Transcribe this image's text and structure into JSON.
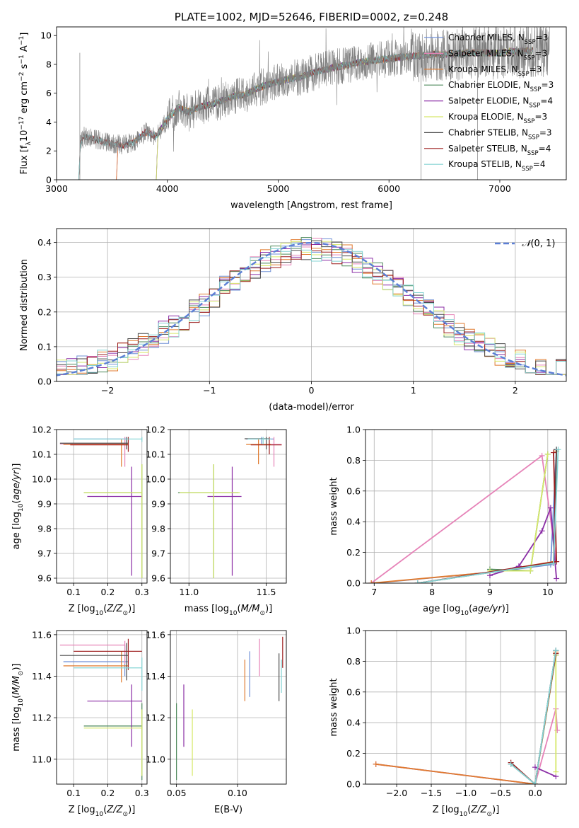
{
  "colors": {
    "Chabrier MILES": "#6f8fd6",
    "Salpeter MILES": "#e683b8",
    "Kroupa MILES": "#e07a2e",
    "Chabrier ELODIE": "#4f8a5c",
    "Salpeter ELODIE": "#8b2ea6",
    "Kroupa ELODIE": "#d6e86a",
    "Chabrier STELIB": "#4a4a4a",
    "Salpeter STELIB": "#9b1c1c",
    "Kroupa STELIB": "#85d4d4",
    "normal": "#5b7fd6",
    "grid": "#b0b0b0",
    "observed": "#808080"
  },
  "chart_data": [
    {
      "id": "spectrum",
      "type": "line",
      "title": "PLATE=1002, MJD=52646, FIBERID=0002, z=0.248",
      "xlabel": "wavelength [Angstrom, rest frame]",
      "ylabel": "Flux [f_λ 10^-17 erg cm^-2 s^-1 A^-1]",
      "xlim": [
        3000,
        7600
      ],
      "ylim": [
        0,
        10.6
      ],
      "xticks": [
        3000,
        4000,
        5000,
        6000,
        7000
      ],
      "yticks": [
        0,
        2,
        4,
        6,
        8,
        10
      ],
      "grid": false,
      "legend_position": "top-right",
      "continuum": {
        "x": [
          3200,
          3250,
          3300,
          3400,
          3500,
          3600,
          3700,
          3800,
          3900,
          4000,
          4100,
          4200,
          4300,
          4400,
          4500,
          4600,
          4700,
          4800,
          4900,
          5000,
          5100,
          5200,
          5300,
          5400,
          5500,
          5600,
          5700,
          5800,
          5900,
          6000,
          6100,
          6200,
          6300,
          6400,
          6500,
          6600,
          6700,
          6800,
          6900,
          7000,
          7100,
          7200,
          7300
        ],
        "y": [
          2.4,
          3.0,
          2.9,
          2.7,
          2.5,
          2.4,
          2.6,
          3.3,
          3.0,
          4.2,
          5.0,
          4.7,
          5.1,
          5.2,
          5.5,
          5.8,
          5.9,
          6.3,
          6.6,
          6.8,
          7.0,
          7.1,
          7.4,
          7.6,
          7.8,
          7.9,
          8.1,
          8.2,
          8.3,
          8.4,
          8.5,
          8.6,
          8.6,
          8.7,
          8.7,
          8.7,
          8.8,
          8.8,
          8.8,
          8.8,
          8.9,
          8.9,
          9.0
        ]
      },
      "series": [
        {
          "name": "Chabrier MILES, N_SSP=3",
          "nssp": "3"
        },
        {
          "name": "Salpeter MILES, N_SSP=3",
          "nssp": "3"
        },
        {
          "name": "Kroupa MILES, N_SSP=3",
          "nssp": "3"
        },
        {
          "name": "Chabrier ELODIE, N_SSP=3",
          "nssp": "3"
        },
        {
          "name": "Salpeter ELODIE, N_SSP=4",
          "nssp": "4"
        },
        {
          "name": "Kroupa ELODIE, N_SSP=3",
          "nssp": "3"
        },
        {
          "name": "Chabrier STELIB, N_SSP=3",
          "nssp": "3"
        },
        {
          "name": "Salpeter STELIB, N_SSP=4",
          "nssp": "4"
        },
        {
          "name": "Kroupa STELIB, N_SSP=4",
          "nssp": "4"
        }
      ],
      "model_start_wavelength": {
        "Chabrier MILES": 3540,
        "Salpeter MILES": 3540,
        "Kroupa MILES": 3540,
        "Chabrier ELODIE": 3900,
        "Salpeter ELODIE": 3900,
        "Kroupa ELODIE": 3900,
        "Chabrier STELIB": 3200,
        "Salpeter STELIB": 3200,
        "Kroupa STELIB": 3200
      }
    },
    {
      "id": "residuals",
      "type": "histogram",
      "xlabel": "(data-model)/error",
      "ylabel": "Normed distribution",
      "xlim": [
        -2.5,
        2.5
      ],
      "ylim": [
        0,
        0.44
      ],
      "xticks": [
        -2,
        -1,
        0,
        1,
        2
      ],
      "yticks": [
        0.0,
        0.1,
        0.2,
        0.3,
        0.4
      ],
      "grid": true,
      "bin_width": 0.1,
      "legend_position": "top-right",
      "reference_curve": {
        "name": "N(0,1)",
        "style": "dashed"
      }
    },
    {
      "id": "age_vs_Z",
      "type": "errorbar",
      "xlabel": "Z [log10(Z/Z_sun)]",
      "ylabel": "age [log10(age/yr)]",
      "xlim": [
        0.05,
        0.315
      ],
      "ylim": [
        9.58,
        10.2
      ],
      "xticks": [
        0.1,
        0.2,
        0.3
      ],
      "yticks": [
        9.6,
        9.7,
        9.8,
        9.9,
        10.0,
        10.1,
        10.2
      ],
      "grid": true,
      "points": [
        {
          "model": "Chabrier MILES",
          "x": 0.25,
          "xerr": [
            0.1,
            0.26
          ],
          "y": 10.162,
          "yerr": [
            10.14,
            10.17
          ]
        },
        {
          "model": "Salpeter MILES",
          "x": 0.25,
          "xerr": [
            0.06,
            0.25
          ],
          "y": 10.142,
          "yerr": [
            10.05,
            10.17
          ]
        },
        {
          "model": "Kroupa MILES",
          "x": 0.24,
          "xerr": [
            0.07,
            0.26
          ],
          "y": 10.14,
          "yerr": [
            10.05,
            10.16
          ]
        },
        {
          "model": "Chabrier ELODIE",
          "x": 0.3,
          "xerr": [
            0.13,
            0.3
          ],
          "y": 9.945,
          "yerr": [
            9.6,
            10.06
          ]
        },
        {
          "model": "Salpeter ELODIE",
          "x": 0.27,
          "xerr": [
            0.14,
            0.3
          ],
          "y": 9.93,
          "yerr": [
            9.61,
            10.05
          ]
        },
        {
          "model": "Kroupa ELODIE",
          "x": 0.3,
          "xerr": [
            0.13,
            0.3
          ],
          "y": 9.945,
          "yerr": [
            9.6,
            10.06
          ]
        },
        {
          "model": "Chabrier STELIB",
          "x": 0.255,
          "xerr": [
            0.06,
            0.26
          ],
          "y": 10.145,
          "yerr": [
            10.12,
            10.17
          ]
        },
        {
          "model": "Salpeter STELIB",
          "x": 0.26,
          "xerr": [
            0.09,
            0.26
          ],
          "y": 10.138,
          "yerr": [
            10.11,
            10.17
          ]
        },
        {
          "model": "Kroupa STELIB",
          "x": 0.3,
          "xerr": [
            0.1,
            0.3
          ],
          "y": 10.162,
          "yerr": [
            10.15,
            10.17
          ]
        }
      ]
    },
    {
      "id": "age_vs_mass",
      "type": "errorbar",
      "xlabel": "mass [log10(M/M_sun)]",
      "ylabel": "",
      "xlim": [
        10.88,
        11.63
      ],
      "ylim": [
        9.58,
        10.2
      ],
      "xticks": [
        11.0,
        11.5
      ],
      "yticks": [
        9.6,
        9.7,
        9.8,
        9.9,
        10.0,
        10.1,
        10.2
      ],
      "grid": true,
      "points": [
        {
          "model": "Chabrier MILES",
          "x": 11.47,
          "xerr": [
            11.37,
            11.55
          ],
          "y": 10.162,
          "yerr": [
            10.14,
            10.17
          ]
        },
        {
          "model": "Salpeter MILES",
          "x": 11.55,
          "xerr": [
            11.45,
            11.6
          ],
          "y": 10.14,
          "yerr": [
            10.05,
            10.17
          ]
        },
        {
          "model": "Kroupa MILES",
          "x": 11.45,
          "xerr": [
            11.37,
            11.53
          ],
          "y": 10.14,
          "yerr": [
            10.06,
            10.16
          ]
        },
        {
          "model": "Chabrier ELODIE",
          "x": 11.16,
          "xerr": [
            10.93,
            11.32
          ],
          "y": 9.945,
          "yerr": [
            9.6,
            10.06
          ]
        },
        {
          "model": "Salpeter ELODIE",
          "x": 11.28,
          "xerr": [
            11.12,
            11.34
          ],
          "y": 9.93,
          "yerr": [
            9.61,
            10.05
          ]
        },
        {
          "model": "Kroupa ELODIE",
          "x": 11.16,
          "xerr": [
            10.94,
            11.33
          ],
          "y": 9.945,
          "yerr": [
            9.6,
            10.06
          ]
        },
        {
          "model": "Chabrier STELIB",
          "x": 11.5,
          "xerr": [
            11.36,
            11.52
          ],
          "y": 10.163,
          "yerr": [
            10.12,
            10.17
          ]
        },
        {
          "model": "Salpeter STELIB",
          "x": 11.52,
          "xerr": [
            11.4,
            11.6
          ],
          "y": 10.138,
          "yerr": [
            10.1,
            10.17
          ]
        },
        {
          "model": "Kroupa STELIB",
          "x": 11.48,
          "xerr": [
            11.38,
            11.53
          ],
          "y": 10.162,
          "yerr": [
            10.14,
            10.17
          ]
        }
      ]
    },
    {
      "id": "mass_weight_vs_age",
      "type": "line",
      "xlabel": "age [log10(age/yr)]",
      "ylabel": "mass weight",
      "xlim": [
        6.85,
        10.32
      ],
      "ylim": [
        0,
        1.0
      ],
      "xticks": [
        7,
        8,
        9,
        10
      ],
      "yticks": [
        0.0,
        0.2,
        0.4,
        0.6,
        0.8,
        1.0
      ],
      "grid": true,
      "series": [
        {
          "model": "Chabrier MILES",
          "x": [
            7.0,
            9.0,
            10.05,
            10.15
          ],
          "y": [
            0.0,
            0.07,
            0.12,
            0.87
          ]
        },
        {
          "model": "Salpeter MILES",
          "x": [
            6.95,
            9.9,
            10.15
          ],
          "y": [
            0.0,
            0.83,
            0.14
          ]
        },
        {
          "model": "Kroupa MILES",
          "x": [
            6.95,
            9.0,
            10.1,
            10.15
          ],
          "y": [
            0.0,
            0.07,
            0.14,
            0.86
          ]
        },
        {
          "model": "Chabrier ELODIE",
          "x": [
            9.0,
            9.7,
            10.0
          ],
          "y": [
            0.09,
            0.08,
            0.84
          ]
        },
        {
          "model": "Salpeter ELODIE",
          "x": [
            9.0,
            9.5,
            9.9,
            10.05,
            10.15
          ],
          "y": [
            0.05,
            0.11,
            0.34,
            0.49,
            0.03
          ]
        },
        {
          "model": "Kroupa ELODIE",
          "x": [
            9.0,
            9.7,
            10.0
          ],
          "y": [
            0.08,
            0.08,
            0.84
          ]
        },
        {
          "model": "Chabrier STELIB",
          "x": [
            7.75,
            10.1,
            10.15
          ],
          "y": [
            0.0,
            0.13,
            0.87
          ]
        },
        {
          "model": "Salpeter STELIB",
          "x": [
            7.75,
            10.15,
            10.1
          ],
          "y": [
            0.0,
            0.14,
            0.85
          ]
        },
        {
          "model": "Kroupa STELIB",
          "x": [
            7.75,
            10.1,
            10.18
          ],
          "y": [
            0.0,
            0.13,
            0.87
          ]
        }
      ]
    },
    {
      "id": "mass_vs_Z",
      "type": "errorbar",
      "xlabel": "Z [log10(Z/Z_sun)]",
      "ylabel": "mass [log10(M/M_sun)]",
      "xlim": [
        0.05,
        0.315
      ],
      "ylim": [
        10.88,
        11.62
      ],
      "xticks": [
        0.1,
        0.2,
        0.3
      ],
      "yticks": [
        11.0,
        11.2,
        11.4,
        11.6
      ],
      "grid": true,
      "points": [
        {
          "model": "Chabrier MILES",
          "x": 0.25,
          "xerr": [
            0.07,
            0.26
          ],
          "y": 11.47,
          "yerr": [
            11.4,
            11.55
          ]
        },
        {
          "model": "Salpeter MILES",
          "x": 0.25,
          "xerr": [
            0.06,
            0.25
          ],
          "y": 11.55,
          "yerr": [
            11.46,
            11.57
          ]
        },
        {
          "model": "Kroupa MILES",
          "x": 0.24,
          "xerr": [
            0.07,
            0.26
          ],
          "y": 11.45,
          "yerr": [
            11.37,
            11.52
          ]
        },
        {
          "model": "Chabrier ELODIE",
          "x": 0.3,
          "xerr": [
            0.13,
            0.3
          ],
          "y": 11.16,
          "yerr": [
            10.9,
            11.27
          ]
        },
        {
          "model": "Salpeter ELODIE",
          "x": 0.27,
          "xerr": [
            0.14,
            0.3
          ],
          "y": 11.28,
          "yerr": [
            11.06,
            11.36
          ]
        },
        {
          "model": "Kroupa ELODIE",
          "x": 0.3,
          "xerr": [
            0.13,
            0.3
          ],
          "y": 11.15,
          "yerr": [
            10.92,
            11.24
          ]
        },
        {
          "model": "Chabrier STELIB",
          "x": 0.255,
          "xerr": [
            0.06,
            0.26
          ],
          "y": 11.5,
          "yerr": [
            11.38,
            11.56
          ]
        },
        {
          "model": "Salpeter STELIB",
          "x": 0.26,
          "xerr": [
            0.1,
            0.3
          ],
          "y": 11.52,
          "yerr": [
            11.43,
            11.58
          ]
        },
        {
          "model": "Kroupa STELIB",
          "x": 0.3,
          "xerr": [
            0.1,
            0.3
          ],
          "y": 11.44,
          "yerr": [
            11.33,
            11.49
          ]
        }
      ]
    },
    {
      "id": "mass_vs_ebv",
      "type": "errorbar",
      "xlabel": "E(B-V)",
      "ylabel": "",
      "xlim": [
        0.045,
        0.14
      ],
      "ylim": [
        10.88,
        11.62
      ],
      "xticks": [
        0.05,
        0.1
      ],
      "yticks": [
        11.0,
        11.2,
        11.4,
        11.6
      ],
      "grid": true,
      "points": [
        {
          "model": "Chabrier MILES",
          "x": 0.11,
          "yerr": [
            11.3,
            11.52
          ]
        },
        {
          "model": "Salpeter MILES",
          "x": 0.118,
          "yerr": [
            11.4,
            11.58
          ]
        },
        {
          "model": "Kroupa MILES",
          "x": 0.106,
          "yerr": [
            11.28,
            11.48
          ]
        },
        {
          "model": "Chabrier ELODIE",
          "x": 0.05,
          "yerr": [
            10.9,
            11.27
          ]
        },
        {
          "model": "Salpeter ELODIE",
          "x": 0.056,
          "yerr": [
            11.06,
            11.36
          ]
        },
        {
          "model": "Kroupa ELODIE",
          "x": 0.063,
          "yerr": [
            10.92,
            11.24
          ]
        },
        {
          "model": "Chabrier STELIB",
          "x": 0.134,
          "yerr": [
            11.28,
            11.51
          ]
        },
        {
          "model": "Salpeter STELIB",
          "x": 0.137,
          "yerr": [
            11.44,
            11.59
          ]
        },
        {
          "model": "Kroupa STELIB",
          "x": 0.136,
          "yerr": [
            11.32,
            11.48
          ]
        }
      ]
    },
    {
      "id": "mass_weight_vs_Z",
      "type": "line",
      "xlabel": "Z [log10(Z/Z_sun)]",
      "ylabel": "mass weight",
      "xlim": [
        -2.45,
        0.45
      ],
      "ylim": [
        0,
        1.0
      ],
      "xticks": [
        -2.0,
        -1.5,
        -1.0,
        -0.5,
        0.0
      ],
      "yticks": [
        0.0,
        0.2,
        0.4,
        0.6,
        0.8,
        1.0
      ],
      "grid": true,
      "series": [
        {
          "model": "Chabrier MILES",
          "x": [
            -2.3,
            0.0,
            0.3
          ],
          "y": [
            0.13,
            0.0,
            0.87
          ]
        },
        {
          "model": "Salpeter MILES",
          "x": [
            -2.3,
            0.0,
            0.3,
            0.32
          ],
          "y": [
            0.13,
            0.0,
            0.49,
            0.35
          ]
        },
        {
          "model": "Kroupa MILES",
          "x": [
            -2.3,
            0.0,
            0.3
          ],
          "y": [
            0.13,
            0.0,
            0.86
          ]
        },
        {
          "model": "Chabrier ELODIE",
          "x": [
            0.0,
            0.3
          ],
          "y": [
            0.0,
            0.84
          ]
        },
        {
          "model": "Salpeter ELODIE",
          "x": [
            0.0,
            0.3
          ],
          "y": [
            0.11,
            0.05
          ]
        },
        {
          "model": "Kroupa ELODIE",
          "x": [
            0.0,
            0.3,
            0.3
          ],
          "y": [
            0.0,
            0.84,
            0.08
          ]
        },
        {
          "model": "Chabrier STELIB",
          "x": [
            -0.35,
            0.0,
            0.3
          ],
          "y": [
            0.13,
            0.0,
            0.87
          ]
        },
        {
          "model": "Salpeter STELIB",
          "x": [
            -0.35,
            0.0,
            0.3
          ],
          "y": [
            0.14,
            0.0,
            0.85
          ]
        },
        {
          "model": "Kroupa STELIB",
          "x": [
            -0.35,
            0.0,
            0.3
          ],
          "y": [
            0.13,
            0.0,
            0.87
          ]
        }
      ]
    }
  ]
}
